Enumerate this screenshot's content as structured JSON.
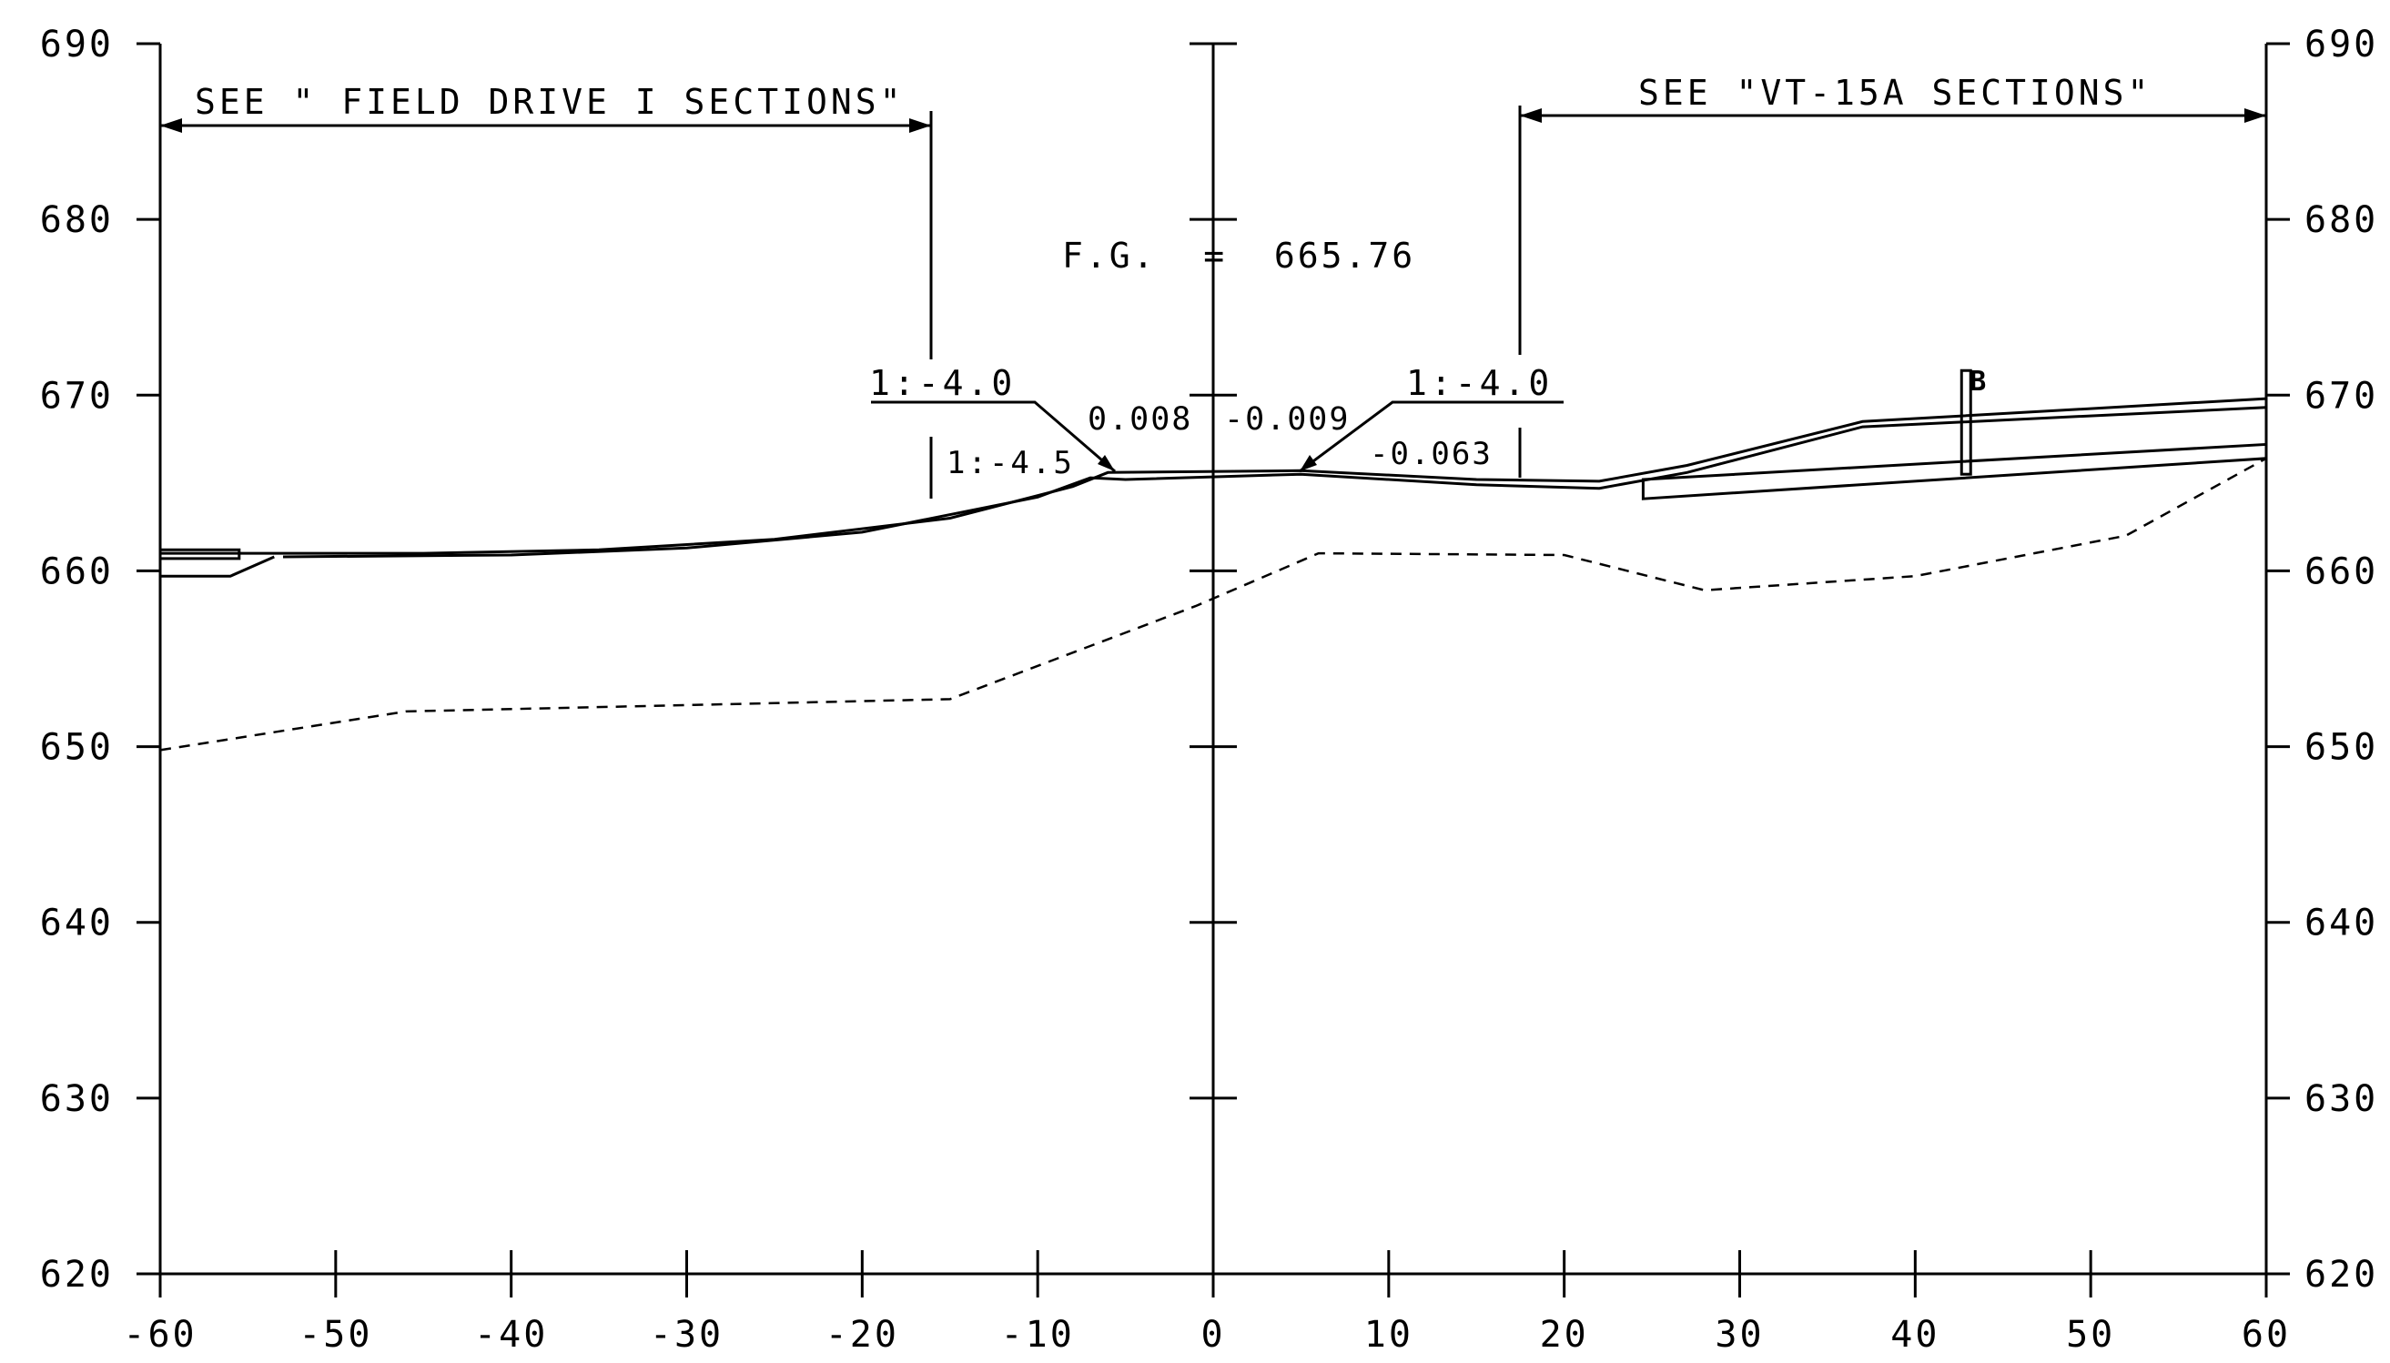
{
  "chart_data": {
    "type": "cross-section",
    "xlim": [
      -60,
      60
    ],
    "ylim": [
      620,
      690
    ],
    "x_ticks": [
      "-60",
      "-50",
      "-40",
      "-30",
      "-20",
      "-10",
      "0",
      "10",
      "20",
      "30",
      "40",
      "50",
      "60"
    ],
    "y_ticks": [
      "620",
      "630",
      "640",
      "650",
      "660",
      "670",
      "680",
      "690"
    ],
    "existing_ground": [
      [
        -60,
        649.8
      ],
      [
        -46,
        652
      ],
      [
        -15,
        652.7
      ],
      [
        -1,
        658
      ],
      [
        6,
        661
      ],
      [
        20,
        660.9
      ],
      [
        28,
        658.9
      ],
      [
        40,
        659.7
      ],
      [
        52,
        662
      ],
      [
        60,
        666.4
      ]
    ],
    "proposed_top": [
      [
        -60,
        661
      ],
      [
        -45,
        661
      ],
      [
        -35,
        661.2
      ],
      [
        -25,
        661.8
      ],
      [
        -15,
        663
      ],
      [
        -8,
        664.8
      ],
      [
        -6,
        665.6
      ],
      [
        5,
        665.7
      ],
      [
        15,
        665.2
      ],
      [
        22,
        665.1
      ],
      [
        27,
        666
      ],
      [
        37,
        668.5
      ],
      [
        60,
        669.8
      ]
    ],
    "proposed_bottom": [
      [
        -53,
        660.8
      ],
      [
        -40,
        660.9
      ],
      [
        -30,
        661.3
      ],
      [
        -20,
        662.2
      ],
      [
        -10,
        664.2
      ],
      [
        -7,
        665.3
      ],
      [
        -5,
        665.2
      ],
      [
        5,
        665.5
      ],
      [
        15,
        664.9
      ],
      [
        22,
        664.7
      ],
      [
        27,
        665.6
      ],
      [
        37,
        668.2
      ],
      [
        60,
        669.3
      ]
    ],
    "left_shoulder": [
      [
        -60,
        661.2
      ],
      [
        -55.5,
        661.2
      ],
      [
        -55.5,
        660.7
      ],
      [
        -60,
        660.7
      ]
    ],
    "left_base": [
      [
        -60,
        659.7
      ],
      [
        -56,
        659.7
      ],
      [
        -53.5,
        660.8
      ]
    ],
    "right_layer": [
      [
        24.5,
        665.2
      ],
      [
        60,
        667.2
      ],
      [
        60,
        666.4
      ],
      [
        24.5,
        664.1
      ]
    ],
    "post": {
      "x": 42.9,
      "bottom": 665.5,
      "top": 671.4,
      "label": "B"
    }
  },
  "annotations": {
    "left_range": "SEE \" FIELD DRIVE I SECTIONS\"",
    "right_range": "SEE \"VT-15A SECTIONS\"",
    "finished_grade": "F.G.  =  665.76",
    "left_slope_top": "1:-4.0",
    "left_slope_inner": "1:-4.5",
    "center_left_slope": "0.008",
    "center_right_slope": "-0.009",
    "right_slope_top": "1:-4.0",
    "right_slope_inner": "-0.063"
  }
}
